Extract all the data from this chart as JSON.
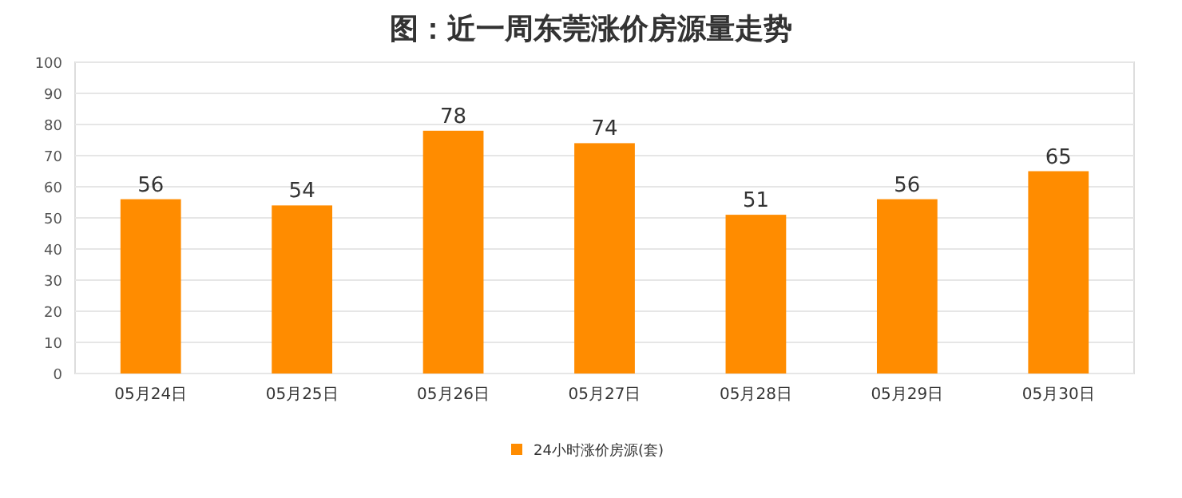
{
  "chart_data": {
    "type": "bar",
    "title": "图：近一周东莞涨价房源量走势",
    "categories": [
      "05月24日",
      "05月25日",
      "05月26日",
      "05月27日",
      "05月28日",
      "05月29日",
      "05月30日"
    ],
    "series": [
      {
        "name": "24小时涨价房源(套)",
        "color": "#ff8c00",
        "values": [
          56,
          54,
          78,
          74,
          51,
          56,
          65
        ]
      }
    ],
    "ylim": [
      0,
      100
    ],
    "yticks": [
      0,
      10,
      20,
      30,
      40,
      50,
      60,
      70,
      80,
      90,
      100
    ],
    "grid": "y",
    "legend": "bottom",
    "data_labels": true
  }
}
